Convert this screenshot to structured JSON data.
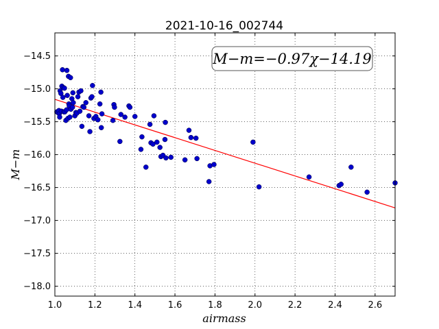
{
  "chart_data": {
    "type": "scatter",
    "title": "2021-10-16_002744",
    "xlabel": "airmass",
    "ylabel": "M−m",
    "annotation": "M−m=−0.97χ−14.19",
    "xlim": [
      1.0,
      2.7
    ],
    "ylim": [
      -18.15,
      -14.15
    ],
    "xticks": [
      1.0,
      1.2,
      1.4,
      1.6,
      1.8,
      2.0,
      2.2,
      2.4,
      2.6
    ],
    "xtick_labels": [
      "1.0",
      "1.2",
      "1.4",
      "1.6",
      "1.8",
      "2.0",
      "2.2",
      "2.4",
      "2.6"
    ],
    "yticks": [
      -14.5,
      -15.0,
      -15.5,
      -16.0,
      -16.5,
      -17.0,
      -17.5,
      -18.0
    ],
    "ytick_labels": [
      "−14.5",
      "−15.0",
      "−15.5",
      "−16.0",
      "−16.5",
      "−17.0",
      "−17.5",
      "−18.0"
    ],
    "grid": true,
    "fit_line": {
      "slope": -0.97,
      "intercept": -14.19,
      "color": "#ff0000"
    },
    "points_color": "#0000cc",
    "points": [
      [
        1.01,
        -15.35
      ],
      [
        1.015,
        -15.36
      ],
      [
        1.02,
        -15.33
      ],
      [
        1.022,
        -15.38
      ],
      [
        1.024,
        -15.43
      ],
      [
        1.026,
        -15.03
      ],
      [
        1.03,
        -15.07
      ],
      [
        1.033,
        -15.34
      ],
      [
        1.035,
        -14.96
      ],
      [
        1.038,
        -14.71
      ],
      [
        1.04,
        -15.13
      ],
      [
        1.042,
        -14.98
      ],
      [
        1.045,
        -15.35
      ],
      [
        1.048,
        -14.99
      ],
      [
        1.05,
        -15.35
      ],
      [
        1.055,
        -15.48
      ],
      [
        1.058,
        -15.32
      ],
      [
        1.06,
        -14.72
      ],
      [
        1.062,
        -15.1
      ],
      [
        1.065,
        -15.45
      ],
      [
        1.068,
        -14.81
      ],
      [
        1.07,
        -15.23
      ],
      [
        1.072,
        -15.26
      ],
      [
        1.075,
        -15.43
      ],
      [
        1.078,
        -14.83
      ],
      [
        1.08,
        -15.31
      ],
      [
        1.085,
        -15.15
      ],
      [
        1.088,
        -15.28
      ],
      [
        1.09,
        -15.06
      ],
      [
        1.092,
        -15.21
      ],
      [
        1.1,
        -15.41
      ],
      [
        1.105,
        -15.36
      ],
      [
        1.11,
        -15.37
      ],
      [
        1.115,
        -15.12
      ],
      [
        1.12,
        -15.05
      ],
      [
        1.125,
        -15.34
      ],
      [
        1.13,
        -15.03
      ],
      [
        1.135,
        -15.57
      ],
      [
        1.14,
        -15.27
      ],
      [
        1.145,
        -15.28
      ],
      [
        1.155,
        -15.21
      ],
      [
        1.17,
        -15.41
      ],
      [
        1.175,
        -15.65
      ],
      [
        1.18,
        -15.14
      ],
      [
        1.185,
        -15.12
      ],
      [
        1.188,
        -14.95
      ],
      [
        1.195,
        -15.45
      ],
      [
        1.205,
        -15.42
      ],
      [
        1.215,
        -15.47
      ],
      [
        1.225,
        -15.23
      ],
      [
        1.23,
        -15.05
      ],
      [
        1.232,
        -15.59
      ],
      [
        1.235,
        -15.38
      ],
      [
        1.29,
        -15.48
      ],
      [
        1.295,
        -15.24
      ],
      [
        1.298,
        -15.28
      ],
      [
        1.325,
        -15.8
      ],
      [
        1.33,
        -15.39
      ],
      [
        1.35,
        -15.43
      ],
      [
        1.37,
        -15.26
      ],
      [
        1.375,
        -15.28
      ],
      [
        1.4,
        -15.42
      ],
      [
        1.43,
        -15.92
      ],
      [
        1.435,
        -15.73
      ],
      [
        1.455,
        -16.19
      ],
      [
        1.475,
        -15.54
      ],
      [
        1.48,
        -15.82
      ],
      [
        1.49,
        -15.84
      ],
      [
        1.495,
        -15.41
      ],
      [
        1.51,
        -15.81
      ],
      [
        1.525,
        -15.89
      ],
      [
        1.53,
        -16.03
      ],
      [
        1.54,
        -16.01
      ],
      [
        1.55,
        -15.77
      ],
      [
        1.552,
        -15.51
      ],
      [
        1.555,
        -16.05
      ],
      [
        1.58,
        -16.04
      ],
      [
        1.65,
        -16.08
      ],
      [
        1.67,
        -15.63
      ],
      [
        1.68,
        -15.74
      ],
      [
        1.705,
        -15.75
      ],
      [
        1.71,
        -16.06
      ],
      [
        1.77,
        -16.41
      ],
      [
        1.775,
        -16.17
      ],
      [
        1.795,
        -16.15
      ],
      [
        1.99,
        -15.81
      ],
      [
        2.02,
        -16.49
      ],
      [
        2.27,
        -16.34
      ],
      [
        2.42,
        -16.47
      ],
      [
        2.43,
        -16.45
      ],
      [
        2.48,
        -16.19
      ],
      [
        2.56,
        -16.57
      ],
      [
        2.7,
        -16.43
      ]
    ]
  }
}
